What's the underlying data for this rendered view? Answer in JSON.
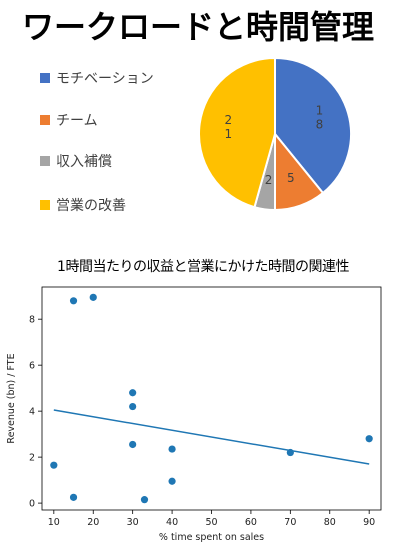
{
  "page": {
    "title": "ワークロードと時間管理"
  },
  "chart_data": [
    {
      "type": "pie",
      "categories": [
        "モチベーション",
        "チーム",
        "収入補償",
        "営業の改善"
      ],
      "values": [
        18,
        5,
        2,
        21
      ],
      "value_labels": [
        [
          "1",
          "8"
        ],
        [
          "5"
        ],
        [
          "2"
        ],
        [
          "2",
          "1"
        ]
      ],
      "colors": [
        "#4472C4",
        "#ED7D31",
        "#A5A5A5",
        "#FFC000"
      ],
      "legend": "left"
    },
    {
      "type": "scatter",
      "title": "1時間当たりの収益と営業にかけた時間の関連性",
      "xlabel": "% time spent on sales",
      "ylabel": "Revenue (bn) / FTE",
      "xlim": [
        7,
        93
      ],
      "ylim": [
        -0.3,
        9.4
      ],
      "xticks": [
        10,
        20,
        30,
        40,
        50,
        60,
        70,
        80,
        90
      ],
      "yticks": [
        0,
        2,
        4,
        6,
        8
      ],
      "x": [
        10,
        15,
        15,
        20,
        30,
        30,
        30,
        33,
        40,
        40,
        70,
        90
      ],
      "y": [
        1.65,
        8.8,
        0.25,
        8.95,
        4.8,
        4.2,
        2.55,
        0.15,
        2.35,
        0.95,
        2.2,
        2.8
      ],
      "trendline": {
        "x": [
          10,
          90
        ],
        "y": [
          4.05,
          1.7
        ]
      },
      "point_color": "#1f77b4",
      "line_color": "#1f77b4"
    }
  ]
}
